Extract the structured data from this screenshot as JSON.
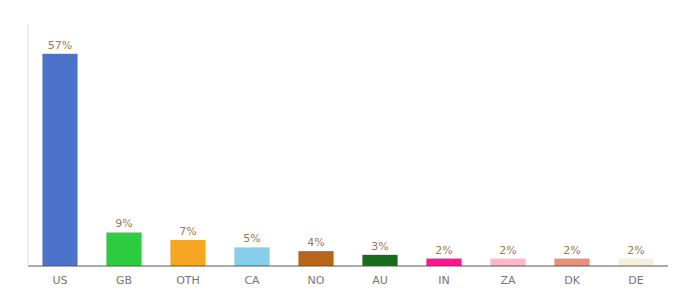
{
  "chart_data": {
    "type": "bar",
    "categories": [
      "US",
      "GB",
      "OTH",
      "CA",
      "NO",
      "AU",
      "IN",
      "ZA",
      "DK",
      "DE"
    ],
    "values": [
      57,
      9,
      7,
      5,
      4,
      3,
      2,
      2,
      2,
      2
    ],
    "value_labels": [
      "57%",
      "9%",
      "7%",
      "5%",
      "4%",
      "3%",
      "2%",
      "2%",
      "2%",
      "2%"
    ],
    "colors": [
      "#4d72c9",
      "#2ecc40",
      "#f5a623",
      "#87ceeb",
      "#b8651a",
      "#1a6b1a",
      "#ff1493",
      "#ffb6c8",
      "#e8907a",
      "#f5f0dc"
    ],
    "ylim": [
      0,
      65
    ],
    "data_labels": true,
    "tick_labels": "x",
    "grid": false
  }
}
